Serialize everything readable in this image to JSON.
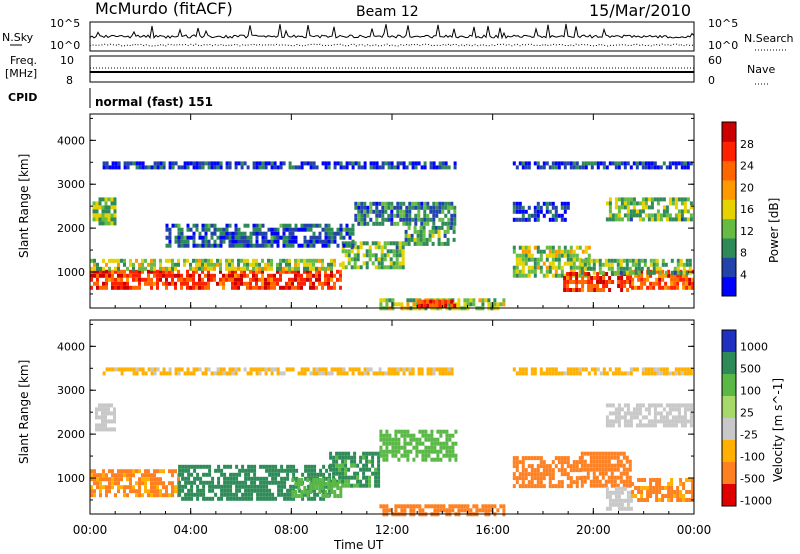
{
  "header": {
    "station": "McMurdo (fitACF)",
    "beam": "Beam 12",
    "date": "15/Mar/2010"
  },
  "noise_panel": {
    "left_label": "N.Sky",
    "right_label": "N.Search",
    "left_ticks": [
      "10^5",
      "10^0"
    ],
    "right_ticks": [
      "10^5",
      "10^0"
    ]
  },
  "freq_panel": {
    "left_label_line1": "Freq.",
    "left_label_line2": "[MHz]",
    "right_label": "Nave",
    "left_ticks": [
      "10",
      "8"
    ],
    "right_ticks": [
      "60",
      "0"
    ]
  },
  "cpid_panel": {
    "label": "CPID",
    "mode": "normal (fast) 151"
  },
  "x_axis": {
    "label": "Time UT",
    "ticks": [
      "00:00",
      "04:00",
      "08:00",
      "12:00",
      "16:00",
      "20:00",
      "00:00"
    ]
  },
  "colors": {
    "power": [
      "#0000ff",
      "#2244aa",
      "#2e8b57",
      "#66bb44",
      "#e6d200",
      "#ff9900",
      "#ff6600",
      "#ff2200",
      "#cc0000"
    ],
    "velocity": [
      "#2030c0",
      "#2e8b57",
      "#5ab846",
      "#a6d96a",
      "#c8c8c8",
      "#ffb000",
      "#ff8020",
      "#ff4010",
      "#e00000"
    ]
  },
  "chart_data": [
    {
      "type": "heatmap",
      "name": "power",
      "ylabel": "Slant Range [km]",
      "y_ticks": [
        "1000",
        "2000",
        "3000",
        "4000"
      ],
      "ylim": [
        180,
        4600
      ],
      "xlim": [
        0,
        24
      ],
      "colorbar": {
        "label": "Power [dB]",
        "ticks": [
          "4",
          "8",
          "12",
          "16",
          "20",
          "24",
          "28"
        ],
        "range": [
          0,
          32
        ]
      },
      "bands": [
        {
          "t0": 0.0,
          "t1": 10.0,
          "r0": 600,
          "r1": 1050,
          "level": 26
        },
        {
          "t0": 0.0,
          "t1": 10.0,
          "r0": 1050,
          "r1": 1300,
          "level": 14
        },
        {
          "t0": 10.0,
          "t1": 12.5,
          "r0": 1100,
          "r1": 1700,
          "level": 12
        },
        {
          "t0": 12.5,
          "t1": 14.5,
          "r0": 1600,
          "r1": 2050,
          "level": 10
        },
        {
          "t0": 3.0,
          "t1": 10.5,
          "r0": 1600,
          "r1": 2100,
          "level": 6
        },
        {
          "t0": 10.5,
          "t1": 14.5,
          "r0": 2100,
          "r1": 2600,
          "level": 8
        },
        {
          "t0": 0.1,
          "t1": 1.0,
          "r0": 2100,
          "r1": 2700,
          "level": 12
        },
        {
          "t0": 11.5,
          "t1": 16.5,
          "r0": 200,
          "r1": 400,
          "level": 14
        },
        {
          "t0": 13.0,
          "t1": 14.5,
          "r0": 230,
          "r1": 370,
          "level": 26
        },
        {
          "t0": 16.8,
          "t1": 19.8,
          "r0": 900,
          "r1": 1600,
          "level": 14
        },
        {
          "t0": 18.8,
          "t1": 21.5,
          "r0": 600,
          "r1": 1000,
          "level": 26
        },
        {
          "t0": 21.5,
          "t1": 23.9,
          "r0": 650,
          "r1": 1050,
          "level": 24
        },
        {
          "t0": 19.5,
          "t1": 23.9,
          "r0": 1000,
          "r1": 1300,
          "level": 12
        },
        {
          "t0": 20.5,
          "t1": 23.9,
          "r0": 2200,
          "r1": 2700,
          "level": 12
        },
        {
          "t0": 16.8,
          "t1": 19.0,
          "r0": 2200,
          "r1": 2600,
          "level": 4
        },
        {
          "t0": 0.5,
          "t1": 14.5,
          "r0": 3380,
          "r1": 3520,
          "level": 4
        },
        {
          "t0": 16.8,
          "t1": 23.9,
          "r0": 3380,
          "r1": 3520,
          "level": 4
        }
      ]
    },
    {
      "type": "heatmap",
      "name": "velocity",
      "ylabel": "Slant Range [km]",
      "y_ticks": [
        "1000",
        "2000",
        "3000",
        "4000"
      ],
      "ylim": [
        180,
        4600
      ],
      "xlim": [
        0,
        24
      ],
      "colorbar": {
        "label": "Velocity [m s^-1]",
        "ticks": [
          "1000",
          "500",
          "100",
          "25",
          "-25",
          "-100",
          "-500",
          "-1000"
        ]
      },
      "bands": [
        {
          "t0": 0.0,
          "t1": 3.5,
          "r0": 600,
          "r1": 1200,
          "level": -120
        },
        {
          "t0": 3.5,
          "t1": 9.5,
          "r0": 500,
          "r1": 1300,
          "level": 150
        },
        {
          "t0": 9.5,
          "t1": 11.5,
          "r0": 800,
          "r1": 1600,
          "level": 120
        },
        {
          "t0": 11.5,
          "t1": 14.5,
          "r0": 1400,
          "r1": 2100,
          "level": 60
        },
        {
          "t0": 8.0,
          "t1": 10.0,
          "r0": 600,
          "r1": 1000,
          "level": 40
        },
        {
          "t0": 0.2,
          "t1": 1.0,
          "r0": 2100,
          "r1": 2700,
          "level": 0
        },
        {
          "t0": 0.5,
          "t1": 14.5,
          "r0": 3380,
          "r1": 3520,
          "level": -30
        },
        {
          "t0": 16.8,
          "t1": 23.9,
          "r0": 3380,
          "r1": 3520,
          "level": -30
        },
        {
          "t0": 16.8,
          "t1": 19.5,
          "r0": 800,
          "r1": 1500,
          "level": -150
        },
        {
          "t0": 19.5,
          "t1": 21.5,
          "r0": 800,
          "r1": 1600,
          "level": -200
        },
        {
          "t0": 20.5,
          "t1": 21.5,
          "r0": 300,
          "r1": 800,
          "level": 0
        },
        {
          "t0": 21.5,
          "t1": 23.9,
          "r0": 500,
          "r1": 1000,
          "level": -120
        },
        {
          "t0": 20.5,
          "t1": 23.9,
          "r0": 2200,
          "r1": 2700,
          "level": 0
        },
        {
          "t0": 11.5,
          "t1": 16.5,
          "r0": 200,
          "r1": 400,
          "level": -150
        }
      ]
    }
  ]
}
